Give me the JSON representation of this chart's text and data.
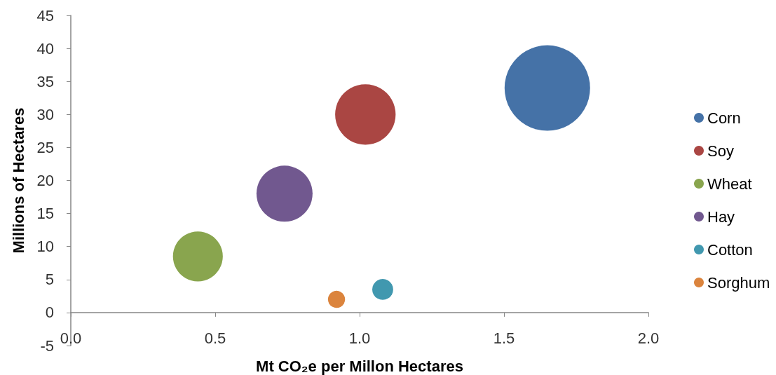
{
  "chart_data": {
    "type": "bubble",
    "xlabel": "Mt CO₂e per Millon Hectares",
    "ylabel": "Millions of Hectares",
    "xlim": [
      0,
      2
    ],
    "xticks": [
      {
        "value": 0,
        "label": "0.0"
      },
      0.5,
      {
        "value": 1,
        "label": "1.0"
      },
      1.5,
      {
        "value": 2,
        "label": "2.0"
      }
    ],
    "ylim": [
      -5,
      45
    ],
    "yticks": [
      -5,
      0,
      5,
      10,
      15,
      20,
      25,
      30,
      35,
      40,
      45
    ],
    "legend": "right",
    "series": [
      {
        "name": "Corn",
        "color": "#4572a7",
        "x": [
          1.65
        ],
        "values": [
          34
        ],
        "sizes": [
          1
        ]
      },
      {
        "name": "Soy",
        "color": "#aa4643",
        "x": [
          1.02
        ],
        "values": [
          30
        ],
        "sizes": [
          0.5
        ]
      },
      {
        "name": "Wheat",
        "color": "#89a54e",
        "x": [
          0.44
        ],
        "values": [
          8.5
        ],
        "sizes": [
          0.34
        ]
      },
      {
        "name": "Hay",
        "color": "#71588f",
        "x": [
          0.74
        ],
        "values": [
          18
        ],
        "sizes": [
          0.43
        ]
      },
      {
        "name": "Cotton",
        "color": "#4198af",
        "x": [
          1.08
        ],
        "values": [
          3.5
        ],
        "sizes": [
          0.06
        ]
      },
      {
        "name": "Sorghum",
        "color": "#db843d",
        "x": [
          0.92
        ],
        "values": [
          2
        ],
        "sizes": [
          0.04
        ]
      }
    ]
  }
}
